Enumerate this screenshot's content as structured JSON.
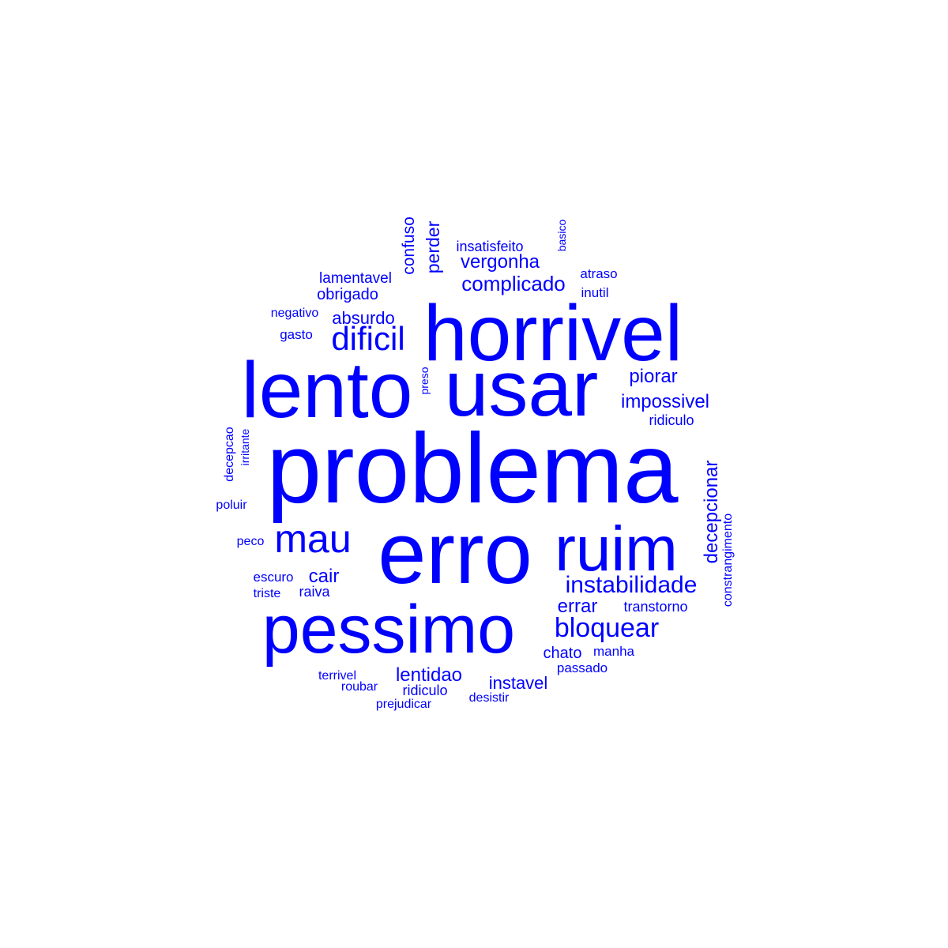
{
  "word_cloud": {
    "color": "#0000ff",
    "words": [
      {
        "text": "problema",
        "rotated": false
      },
      {
        "text": "erro",
        "rotated": false
      },
      {
        "text": "horrivel",
        "rotated": false
      },
      {
        "text": "lento",
        "rotated": false
      },
      {
        "text": "usar",
        "rotated": false
      },
      {
        "text": "pessimo",
        "rotated": false
      },
      {
        "text": "ruim",
        "rotated": false
      },
      {
        "text": "mau",
        "rotated": false
      },
      {
        "text": "dificil",
        "rotated": false
      },
      {
        "text": "instabilidade",
        "rotated": false
      },
      {
        "text": "bloquear",
        "rotated": false
      },
      {
        "text": "complicado",
        "rotated": false
      },
      {
        "text": "impossivel",
        "rotated": false
      },
      {
        "text": "vergonha",
        "rotated": false
      },
      {
        "text": "decepcionar",
        "rotated": true
      },
      {
        "text": "lentidao",
        "rotated": false
      },
      {
        "text": "piorar",
        "rotated": false
      },
      {
        "text": "errar",
        "rotated": false
      },
      {
        "text": "cair",
        "rotated": false
      },
      {
        "text": "instavel",
        "rotated": false
      },
      {
        "text": "perder",
        "rotated": true
      },
      {
        "text": "confuso",
        "rotated": true
      },
      {
        "text": "absurdo",
        "rotated": false
      },
      {
        "text": "chato",
        "rotated": false
      },
      {
        "text": "obrigado",
        "rotated": false
      },
      {
        "text": "lamentavel",
        "rotated": false
      },
      {
        "text": "insatisfeito",
        "rotated": false
      },
      {
        "text": "raiva",
        "rotated": false
      },
      {
        "text": "ridiculo",
        "rotated": false
      },
      {
        "text": "transtorno",
        "rotated": false
      },
      {
        "text": "inutil",
        "rotated": false
      },
      {
        "text": "ridiculo",
        "rotated": false
      },
      {
        "text": "atraso",
        "rotated": false
      },
      {
        "text": "negativo",
        "rotated": false
      },
      {
        "text": "escuro",
        "rotated": false
      },
      {
        "text": "terrivel",
        "rotated": false
      },
      {
        "text": "passado",
        "rotated": false
      },
      {
        "text": "manha",
        "rotated": false
      },
      {
        "text": "roubar",
        "rotated": false
      },
      {
        "text": "desistir",
        "rotated": false
      },
      {
        "text": "gasto",
        "rotated": false
      },
      {
        "text": "triste",
        "rotated": false
      },
      {
        "text": "poluir",
        "rotated": false
      },
      {
        "text": "peco",
        "rotated": false
      },
      {
        "text": "prejudicar",
        "rotated": false
      },
      {
        "text": "preso",
        "rotated": true
      },
      {
        "text": "basico",
        "rotated": true
      },
      {
        "text": "decepcao",
        "rotated": true
      },
      {
        "text": "irritante",
        "rotated": true
      },
      {
        "text": "constrangimento",
        "rotated": true
      }
    ]
  }
}
